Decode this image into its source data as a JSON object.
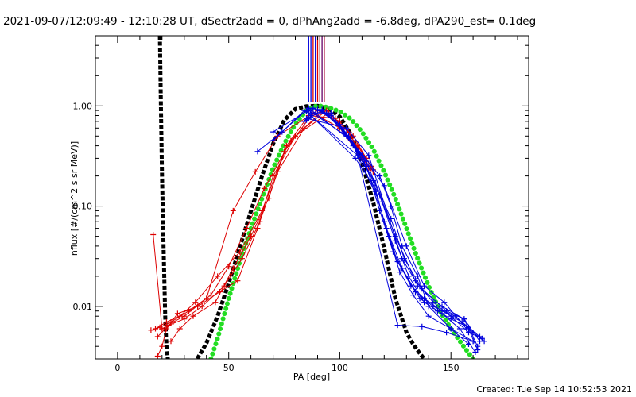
{
  "chart_data": {
    "type": "scatter",
    "title": "2021-09-07/12:09:49 - 12:10:28 UT, dSectr2add = 0, dPhAng2add = -6.8deg, dPA290_est=  0.1deg",
    "xlabel": "PA [deg]",
    "ylabel": "nflux [#/(cm^2 s sr MeV)]",
    "xlim": [
      -10,
      185
    ],
    "ylim": [
      0.003,
      5.0
    ],
    "yscale": "log",
    "x_ticks": [
      0,
      50,
      100,
      150
    ],
    "x_tick_labels": [
      "0",
      "50",
      "100",
      "150"
    ],
    "y_ticks": [
      0.01,
      0.1,
      1.0
    ],
    "y_tick_labels": [
      "0.01",
      "0.10",
      "1.00"
    ],
    "grid": false,
    "legend": false,
    "footer": "Created: Tue Sep 14 10:52:53 2021",
    "colors": {
      "red": "#dd0000",
      "blue": "#0000dd",
      "green": "#22dd22",
      "black": "#000000",
      "axis": "#000000"
    },
    "reference_lines": {
      "x": [
        86,
        87,
        88,
        89,
        90,
        91,
        92,
        93
      ],
      "colors": [
        "#0000dd",
        "#0000dd",
        "#dd0000",
        "#0000dd",
        "#dd0000",
        "#800000",
        "#660066",
        "#aa0033"
      ],
      "from_y": 1.1,
      "to_y": 5.0
    },
    "series": [
      {
        "color": "#dd0000",
        "marker": "plus",
        "x": [
          16,
          20,
          25,
          30,
          40,
          52,
          62,
          72,
          90,
          100,
          112,
          115
        ],
        "y": [
          0.052,
          0.006,
          0.007,
          0.008,
          0.012,
          0.09,
          0.22,
          0.5,
          0.9,
          0.7,
          0.3,
          0.22
        ]
      },
      {
        "color": "#dd0000",
        "marker": "plus",
        "x": [
          17,
          22,
          28,
          35,
          45,
          55,
          65,
          75,
          88,
          100,
          108,
          114
        ],
        "y": [
          0.006,
          0.007,
          0.008,
          0.011,
          0.02,
          0.035,
          0.09,
          0.35,
          0.85,
          0.6,
          0.4,
          0.25
        ]
      },
      {
        "color": "#dd0000",
        "marker": "plus",
        "x": [
          15,
          19,
          24,
          32,
          42,
          50,
          58,
          66,
          78,
          92,
          104,
          113
        ],
        "y": [
          0.0058,
          0.0062,
          0.007,
          0.009,
          0.013,
          0.025,
          0.06,
          0.15,
          0.45,
          0.88,
          0.55,
          0.24
        ]
      },
      {
        "color": "#dd0000",
        "marker": "plus",
        "x": [
          18,
          23,
          30,
          38,
          48,
          56,
          64,
          72,
          84,
          94,
          106,
          115
        ],
        "y": [
          0.005,
          0.0065,
          0.0075,
          0.01,
          0.016,
          0.03,
          0.07,
          0.22,
          0.6,
          0.9,
          0.5,
          0.23
        ]
      },
      {
        "color": "#dd0000",
        "marker": "plus",
        "x": [
          18,
          20,
          22,
          27,
          36,
          46,
          54,
          63,
          70,
          80,
          95,
          110,
          114
        ],
        "y": [
          0.0032,
          0.004,
          0.006,
          0.0085,
          0.01,
          0.014,
          0.018,
          0.06,
          0.2,
          0.5,
          0.85,
          0.3,
          0.24
        ]
      },
      {
        "color": "#dd0000",
        "marker": "plus",
        "x": [
          24,
          28,
          34,
          44,
          52,
          60,
          68,
          76,
          86,
          98,
          108
        ],
        "y": [
          0.0045,
          0.006,
          0.008,
          0.011,
          0.024,
          0.05,
          0.12,
          0.4,
          0.8,
          0.75,
          0.35
        ]
      },
      {
        "color": "#0000dd",
        "marker": "plus",
        "x": [
          63,
          74,
          86,
          94,
          105,
          117,
          122,
          127,
          133,
          140,
          150,
          160
        ],
        "y": [
          0.35,
          0.55,
          0.95,
          0.85,
          0.45,
          0.12,
          0.05,
          0.022,
          0.013,
          0.008,
          0.006,
          0.0045
        ]
      },
      {
        "color": "#0000dd",
        "marker": "plus",
        "x": [
          70,
          84,
          92,
          102,
          112,
          118,
          124,
          132,
          138,
          146,
          155,
          163
        ],
        "y": [
          0.45,
          0.9,
          0.92,
          0.55,
          0.25,
          0.09,
          0.035,
          0.016,
          0.012,
          0.009,
          0.007,
          0.005
        ]
      },
      {
        "color": "#0000dd",
        "marker": "plus",
        "x": [
          84,
          88,
          96,
          106,
          115,
          120,
          126,
          134,
          142,
          152,
          160,
          165
        ],
        "y": [
          0.7,
          0.95,
          0.8,
          0.4,
          0.18,
          0.07,
          0.028,
          0.014,
          0.01,
          0.008,
          0.0055,
          0.0045
        ]
      },
      {
        "color": "#0000dd",
        "marker": "plus",
        "x": [
          85,
          90,
          100,
          110,
          116,
          121,
          128,
          136,
          144,
          150,
          158,
          162
        ],
        "y": [
          0.72,
          0.92,
          0.65,
          0.32,
          0.14,
          0.06,
          0.024,
          0.012,
          0.009,
          0.0075,
          0.0062,
          0.004
        ]
      },
      {
        "color": "#0000dd",
        "marker": "plus",
        "x": [
          86,
          92,
          104,
          112,
          119,
          125,
          131,
          138,
          146,
          154,
          161
        ],
        "y": [
          0.75,
          0.9,
          0.5,
          0.28,
          0.11,
          0.045,
          0.02,
          0.011,
          0.0085,
          0.006,
          0.0035
        ]
      },
      {
        "color": "#0000dd",
        "marker": "plus",
        "x": [
          85,
          103,
          113,
          128,
          134,
          142,
          150,
          158,
          164
        ],
        "y": [
          0.75,
          0.6,
          0.32,
          0.03,
          0.018,
          0.011,
          0.008,
          0.0055,
          0.0048
        ]
      },
      {
        "color": "#0000dd",
        "marker": "plus",
        "x": [
          87,
          96,
          108,
          116,
          123,
          129,
          137,
          148,
          156,
          162
        ],
        "y": [
          0.85,
          0.85,
          0.35,
          0.17,
          0.075,
          0.03,
          0.015,
          0.009,
          0.0075,
          0.0037
        ]
      },
      {
        "color": "#0000dd",
        "marker": "plus",
        "x": [
          86,
          105,
          118,
          123,
          128,
          135,
          140,
          150,
          158
        ],
        "y": [
          0.95,
          0.45,
          0.2,
          0.1,
          0.04,
          0.02,
          0.01,
          0.006,
          0.0042
        ]
      },
      {
        "color": "#0000dd",
        "marker": "plus",
        "x": [
          70,
          85,
          107,
          118,
          125,
          135,
          146,
          156,
          163
        ],
        "y": [
          0.55,
          0.88,
          0.3,
          0.13,
          0.05,
          0.016,
          0.01,
          0.0075,
          0.0045
        ]
      },
      {
        "color": "#0000dd",
        "marker": "plus",
        "x": [
          87,
          108,
          126,
          137,
          148,
          160
        ],
        "y": [
          0.8,
          0.32,
          0.0065,
          0.0063,
          0.0055,
          0.0045
        ]
      },
      {
        "color": "#0000dd",
        "marker": "plus",
        "x": [
          86,
          103,
          120,
          130,
          138,
          147,
          157
        ],
        "y": [
          0.9,
          0.5,
          0.16,
          0.04,
          0.016,
          0.011,
          0.006
        ]
      }
    ],
    "fit_curves": [
      {
        "color": "#000000",
        "style": "thick-dashed",
        "x": [
          19.0,
          19.5,
          20.0,
          20.5,
          21.0,
          21.5,
          22.0,
          23.0,
          25.0,
          30.0,
          35.0,
          40.0,
          45.0,
          50.0,
          55.0,
          60.0,
          65.0,
          70.0,
          75.0,
          80.0,
          85.0,
          90.0,
          95.0,
          100.0,
          105.0,
          110.0,
          115.0,
          120.0,
          125.0,
          130.0,
          133.0,
          136.0,
          138.0
        ],
        "y": [
          5.0,
          1.0,
          0.2,
          0.06,
          0.02,
          0.007,
          0.004,
          0.0025,
          0.002,
          0.002,
          0.0028,
          0.0043,
          0.008,
          0.017,
          0.039,
          0.089,
          0.2,
          0.42,
          0.72,
          0.93,
          0.99,
          1.0,
          0.94,
          0.78,
          0.52,
          0.27,
          0.11,
          0.038,
          0.012,
          0.0055,
          0.0042,
          0.0034,
          0.003
        ]
      },
      {
        "color": "#22dd22",
        "style": "thick-dotted",
        "x": [
          42.0,
          45.0,
          50.0,
          55.0,
          60.0,
          65.0,
          70.0,
          75.0,
          80.0,
          85.0,
          88.0,
          90.0,
          92.0,
          95.0,
          100.0,
          105.0,
          110.0,
          115.0,
          120.0,
          125.0,
          130.0,
          135.0,
          140.0,
          145.0,
          150.0,
          155.0,
          160.0
        ],
        "y": [
          0.003,
          0.0048,
          0.012,
          0.028,
          0.06,
          0.12,
          0.24,
          0.42,
          0.66,
          0.9,
          0.98,
          1.0,
          0.99,
          0.96,
          0.88,
          0.74,
          0.55,
          0.37,
          0.22,
          0.12,
          0.06,
          0.03,
          0.016,
          0.009,
          0.006,
          0.0042,
          0.003
        ]
      }
    ]
  }
}
